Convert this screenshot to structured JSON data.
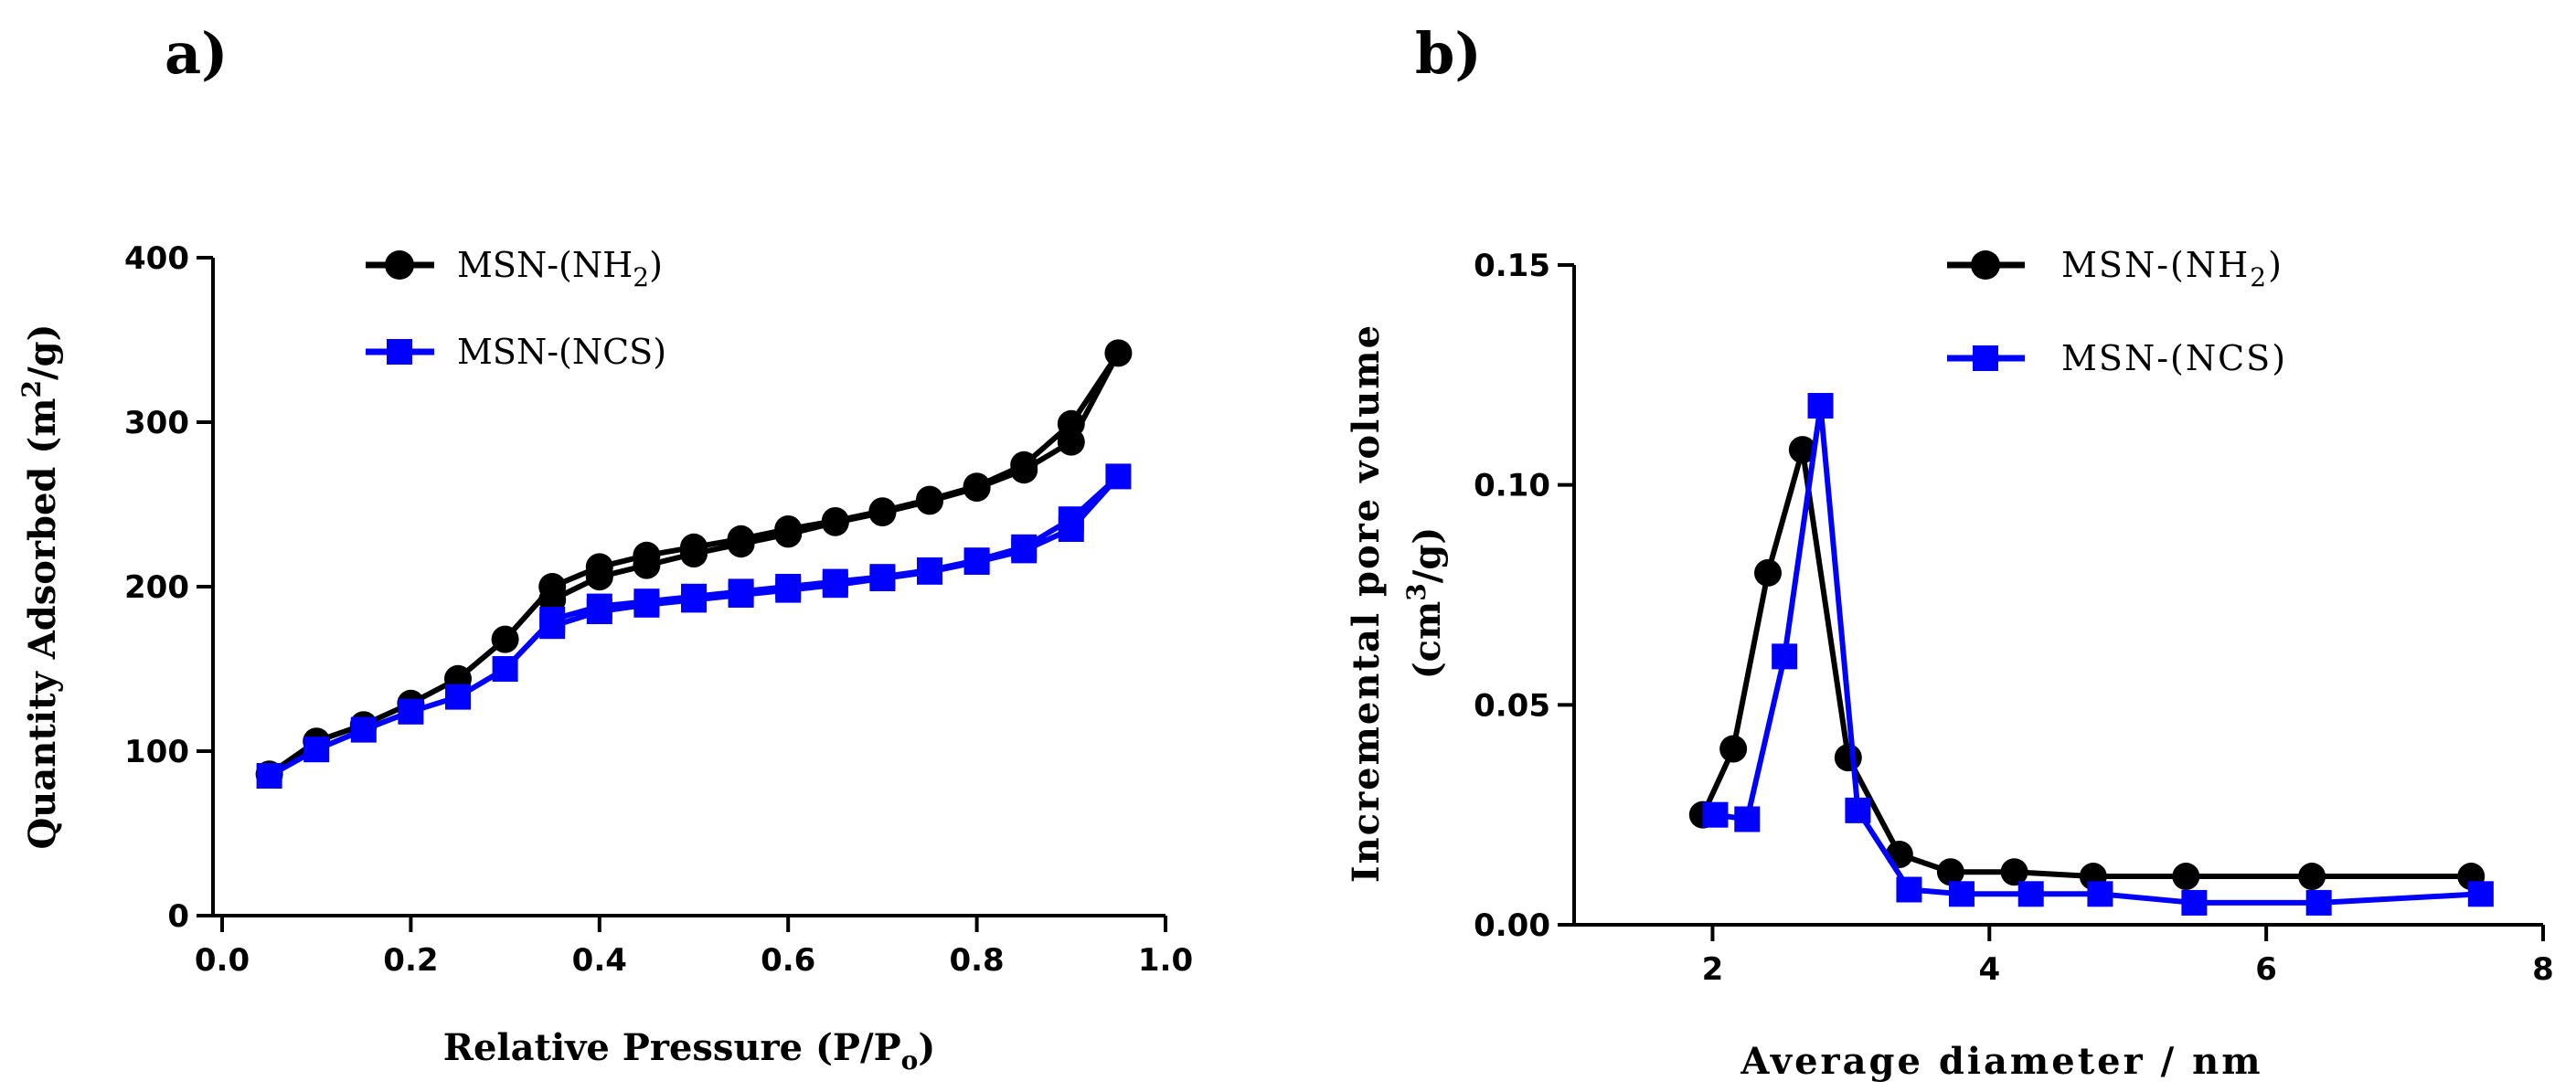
{
  "chart_data": [
    {
      "panel": "a)",
      "type": "line",
      "xlabel": "Relative Pressure (P/P",
      "xlabel_sub": "o",
      "xlabel_end": ")",
      "ylabel": "Quantity Adsorbed (m",
      "ylabel_sup": "2",
      "ylabel_end": "/g)",
      "xlim": [
        0.0,
        1.0
      ],
      "ylim": [
        0,
        400
      ],
      "xticks": [
        0.0,
        0.2,
        0.4,
        0.6,
        0.8,
        1.0
      ],
      "xtick_labels": [
        "0.0",
        "0.2",
        "0.4",
        "0.6",
        "0.8",
        "1.0"
      ],
      "yticks": [
        0,
        100,
        200,
        300,
        400
      ],
      "ytick_labels": [
        "0",
        "100",
        "200",
        "300",
        "400"
      ],
      "legend_position": "top-left",
      "series": [
        {
          "name": "MSN-(NH",
          "name_sub": "2",
          "name_end": ")",
          "color": "#000000",
          "marker": "circle",
          "x": [
            0.05,
            0.1,
            0.15,
            0.2,
            0.25,
            0.3,
            0.35,
            0.4,
            0.45,
            0.5,
            0.55,
            0.6,
            0.65,
            0.7,
            0.75,
            0.8,
            0.85,
            0.9,
            0.95,
            0.9,
            0.85,
            0.8,
            0.75,
            0.7,
            0.65,
            0.6,
            0.55,
            0.5,
            0.45,
            0.4,
            0.35
          ],
          "y": [
            86,
            106,
            116,
            129,
            144,
            168,
            200,
            212,
            219,
            224,
            229,
            235,
            240,
            246,
            253,
            261,
            274,
            299,
            342,
            288,
            271,
            260,
            252,
            245,
            239,
            232,
            226,
            220,
            213,
            206,
            192
          ]
        },
        {
          "name": "MSN-(NCS)",
          "name_sub": "",
          "name_end": "",
          "color": "#0000ff",
          "marker": "square",
          "x": [
            0.05,
            0.1,
            0.15,
            0.2,
            0.25,
            0.3,
            0.35,
            0.4,
            0.45,
            0.5,
            0.55,
            0.6,
            0.65,
            0.7,
            0.75,
            0.8,
            0.85,
            0.9,
            0.95,
            0.9,
            0.85,
            0.8,
            0.75,
            0.7,
            0.65,
            0.6,
            0.55,
            0.5,
            0.45,
            0.4,
            0.35
          ],
          "y": [
            85,
            101,
            113,
            124,
            133,
            150,
            180,
            188,
            191,
            194,
            197,
            200,
            203,
            206,
            210,
            216,
            224,
            241,
            267,
            235,
            222,
            215,
            209,
            205,
            201,
            198,
            195,
            192,
            189,
            185,
            176
          ]
        }
      ]
    },
    {
      "panel": "b)",
      "type": "line",
      "xlabel": "Average diameter / nm",
      "ylabel_line1": "Incremental pore volume",
      "ylabel_line2": "(cm",
      "ylabel_sup": "3",
      "ylabel_end": "/g)",
      "xlim": [
        1.0,
        8.0
      ],
      "ylim": [
        0.0,
        0.15
      ],
      "xticks": [
        2,
        4,
        6,
        8
      ],
      "xtick_labels": [
        "2",
        "4",
        "6",
        "8"
      ],
      "yticks": [
        0.0,
        0.05,
        0.1,
        0.15
      ],
      "ytick_labels": [
        "0.00",
        "0.05",
        "0.10",
        "0.15"
      ],
      "legend_position": "top-right",
      "series": [
        {
          "name": "MSN-(NH",
          "name_sub": "2",
          "name_end": ")",
          "color": "#000000",
          "marker": "circle",
          "x": [
            1.93,
            2.15,
            2.4,
            2.65,
            2.98,
            3.35,
            3.72,
            4.18,
            4.75,
            5.42,
            6.33,
            7.48
          ],
          "y": [
            0.025,
            0.04,
            0.08,
            0.108,
            0.038,
            0.016,
            0.012,
            0.012,
            0.011,
            0.011,
            0.011,
            0.011
          ]
        },
        {
          "name": "MSN-(NCS)",
          "name_sub": "",
          "name_end": "",
          "color": "#0000ff",
          "marker": "square",
          "x": [
            2.02,
            2.25,
            2.52,
            2.78,
            3.05,
            3.42,
            3.8,
            4.3,
            4.8,
            5.48,
            6.38,
            7.55
          ],
          "y": [
            0.025,
            0.024,
            0.061,
            0.118,
            0.026,
            0.008,
            0.007,
            0.007,
            0.007,
            0.005,
            0.005,
            0.007
          ]
        }
      ]
    }
  ]
}
